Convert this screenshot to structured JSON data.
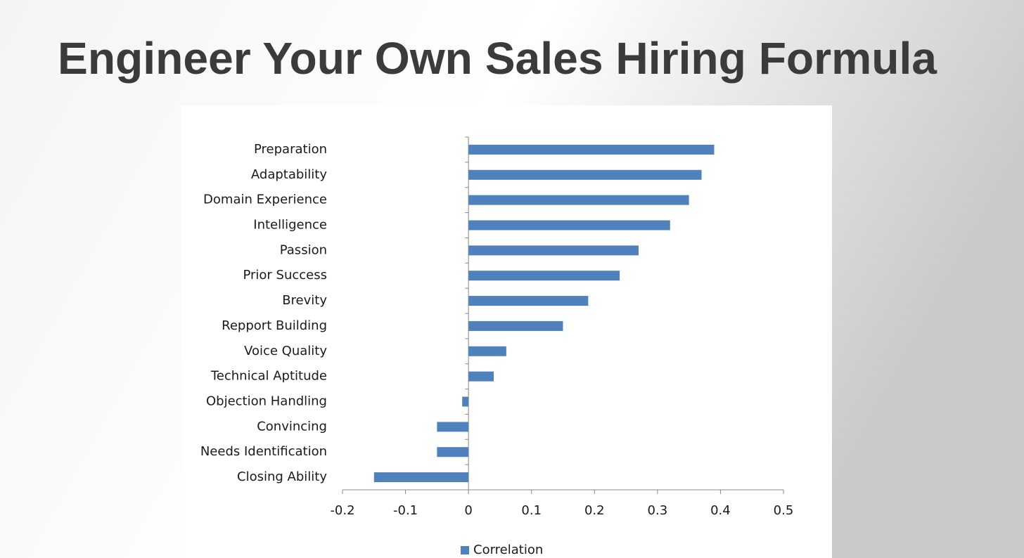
{
  "chart_data": {
    "type": "bar",
    "orientation": "horizontal",
    "title": "Engineer Your Own Sales Hiring Formula",
    "categories": [
      "Preparation",
      "Adaptability",
      "Domain Experience",
      "Intelligence",
      "Passion",
      "Prior Success",
      "Brevity",
      "Repport Building",
      "Voice Quality",
      "Technical Aptitude",
      "Objection Handling",
      "Convincing",
      "Needs Identification",
      "Closing Ability"
    ],
    "series": [
      {
        "name": "Correlation",
        "color": "#4f81bd",
        "values": [
          0.39,
          0.37,
          0.35,
          0.32,
          0.27,
          0.24,
          0.19,
          0.15,
          0.06,
          0.04,
          -0.01,
          -0.05,
          -0.05,
          -0.15
        ]
      }
    ],
    "xlim": [
      -0.2,
      0.5
    ],
    "xticks": [
      -0.2,
      -0.1,
      0,
      0.1,
      0.2,
      0.3,
      0.4,
      0.5
    ],
    "legend": "bottom",
    "grid": false
  }
}
